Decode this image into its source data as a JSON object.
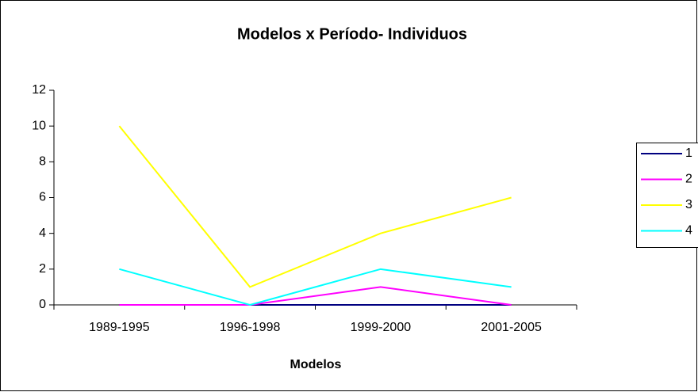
{
  "chart_data": {
    "type": "line",
    "title": "Modelos x Período- Individuos",
    "xlabel": "Modelos",
    "categories": [
      "1989-1995",
      "1996-1998",
      "1999-2000",
      "2001-2005"
    ],
    "series": [
      {
        "name": "1",
        "color": "#000080",
        "values": [
          0,
          0,
          0,
          0
        ]
      },
      {
        "name": "2",
        "color": "#ff00ff",
        "values": [
          0,
          0,
          1,
          0
        ]
      },
      {
        "name": "3",
        "color": "#ffff00",
        "values": [
          10,
          1,
          4,
          6
        ]
      },
      {
        "name": "4",
        "color": "#00ffff",
        "values": [
          2,
          0,
          2,
          1
        ]
      }
    ],
    "ylim": [
      0,
      12
    ],
    "yticks": [
      0,
      2,
      4,
      6,
      8,
      10,
      12
    ],
    "grid": false,
    "legend": "right"
  }
}
